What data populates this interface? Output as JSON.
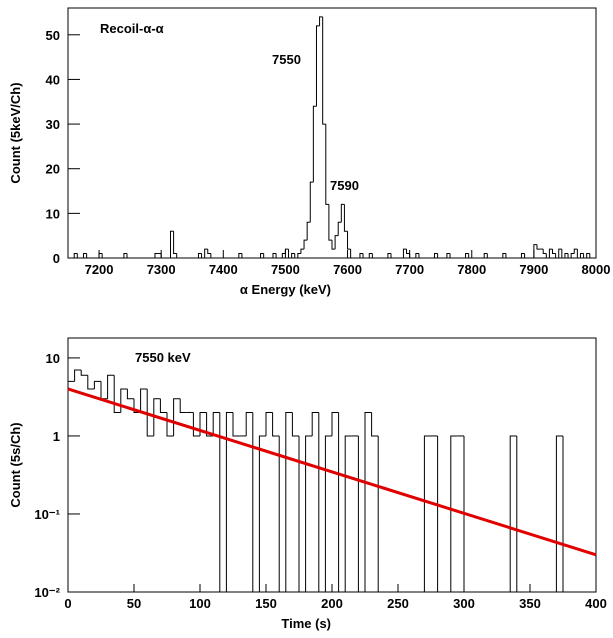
{
  "chart_data": [
    {
      "type": "histogram",
      "title": "Recoil-α-α",
      "xlabel": "α Energy (keV)",
      "ylabel": "Count (5keV/Ch)",
      "annotations": [
        "7550",
        "7590"
      ],
      "color": "#000000",
      "log_y": false,
      "bins": [
        7150,
        7155,
        7160,
        7165,
        7170,
        7175,
        7180,
        7185,
        7190,
        7195,
        7200,
        7205,
        7210,
        7215,
        7220,
        7225,
        7230,
        7235,
        7240,
        7245,
        7250,
        7255,
        7260,
        7265,
        7270,
        7275,
        7280,
        7285,
        7290,
        7295,
        7300,
        7305,
        7310,
        7315,
        7320,
        7325,
        7330,
        7335,
        7340,
        7345,
        7350,
        7355,
        7360,
        7365,
        7370,
        7375,
        7380,
        7385,
        7390,
        7395,
        7400,
        7405,
        7410,
        7415,
        7420,
        7425,
        7430,
        7435,
        7440,
        7445,
        7450,
        7455,
        7460,
        7465,
        7470,
        7475,
        7480,
        7485,
        7490,
        7495,
        7500,
        7505,
        7510,
        7515,
        7520,
        7525,
        7530,
        7535,
        7540,
        7545,
        7550,
        7555,
        7560,
        7565,
        7570,
        7575,
        7580,
        7585,
        7590,
        7595,
        7600,
        7605,
        7610,
        7615,
        7620,
        7625,
        7630,
        7635,
        7640,
        7645,
        7650,
        7655,
        7660,
        7665,
        7670,
        7675,
        7680,
        7685,
        7690,
        7695,
        7700,
        7705,
        7710,
        7715,
        7720,
        7725,
        7730,
        7735,
        7740,
        7745,
        7750,
        7755,
        7760,
        7765,
        7770,
        7775,
        7780,
        7785,
        7790,
        7795,
        7800,
        7805,
        7810,
        7815,
        7820,
        7825,
        7830,
        7835,
        7840,
        7845,
        7850,
        7855,
        7860,
        7865,
        7870,
        7875,
        7880,
        7885,
        7890,
        7895,
        7900,
        7905,
        7910,
        7915,
        7920,
        7925,
        7930,
        7935,
        7940,
        7945,
        7950,
        7955,
        7960,
        7965,
        7970,
        7975,
        7980,
        7985,
        7990,
        7995,
        8000
      ],
      "values": [
        0,
        0,
        1,
        0,
        0,
        1,
        0,
        0,
        0,
        0,
        1,
        0,
        0,
        0,
        0,
        0,
        0,
        0,
        1,
        0,
        0,
        0,
        0,
        0,
        0,
        0,
        0,
        0,
        1,
        1,
        0,
        0,
        0,
        6,
        1,
        0,
        0,
        0,
        0,
        0,
        0,
        0,
        1,
        0,
        2,
        1,
        0,
        0,
        0,
        0,
        0,
        0,
        0,
        0,
        0,
        1,
        0,
        0,
        0,
        0,
        0,
        0,
        1,
        0,
        0,
        0,
        1,
        0,
        0,
        1,
        2,
        0,
        1,
        0,
        1,
        2,
        4,
        8,
        17,
        34,
        52,
        54,
        30,
        12,
        4,
        2,
        5,
        8,
        12,
        6,
        2,
        0,
        0,
        0,
        1,
        0,
        0,
        1,
        0,
        0,
        0,
        0,
        0,
        1,
        0,
        0,
        0,
        0,
        2,
        1,
        0,
        0,
        1,
        0,
        0,
        0,
        0,
        0,
        1,
        0,
        0,
        0,
        1,
        0,
        0,
        0,
        0,
        0,
        1,
        0,
        0,
        0,
        0,
        0,
        1,
        0,
        0,
        0,
        0,
        0,
        1,
        0,
        0,
        0,
        0,
        0,
        1,
        0,
        0,
        0,
        3,
        2,
        2,
        1,
        0,
        2,
        1,
        0,
        2,
        0,
        1,
        0,
        1,
        2,
        0,
        1,
        0,
        1,
        0,
        0
      ],
      "xlim": [
        7150,
        8000
      ],
      "xticks": [
        7200,
        7300,
        7400,
        7500,
        7600,
        7700,
        7800,
        7900,
        8000
      ],
      "ylim": [
        0,
        56
      ],
      "yticks": [
        0,
        10,
        20,
        30,
        40,
        50
      ]
    },
    {
      "type": "histogram",
      "title": "7550 keV",
      "xlabel": "Time (s)",
      "ylabel": "Count (5s/Ch)",
      "color": "#000000",
      "log_y": true,
      "bins": [
        0,
        5,
        10,
        15,
        20,
        25,
        30,
        35,
        40,
        45,
        50,
        55,
        60,
        65,
        70,
        75,
        80,
        85,
        90,
        95,
        100,
        105,
        110,
        115,
        120,
        125,
        130,
        135,
        140,
        145,
        150,
        155,
        160,
        165,
        170,
        175,
        180,
        185,
        190,
        195,
        200,
        205,
        210,
        215,
        220,
        225,
        230,
        235,
        240,
        245,
        250,
        255,
        260,
        265,
        270,
        275,
        280,
        285,
        290,
        295,
        300,
        305,
        310,
        315,
        320,
        325,
        330,
        335,
        340,
        345,
        350,
        355,
        360,
        365,
        370,
        375,
        380,
        385,
        390,
        395,
        400
      ],
      "values": [
        5,
        7,
        6,
        4,
        5,
        3,
        6,
        2,
        4,
        3,
        2,
        4,
        1,
        3,
        2,
        1,
        3,
        2,
        2,
        1,
        2,
        1,
        2,
        0,
        2,
        1,
        1,
        2,
        0,
        1,
        2,
        1,
        0,
        2,
        1,
        0,
        1,
        2,
        0,
        1,
        2,
        0,
        1,
        1,
        0,
        2,
        1,
        0,
        0,
        0,
        0,
        0,
        0,
        0,
        1,
        1,
        0,
        0,
        1,
        1,
        0,
        0,
        0,
        0,
        0,
        0,
        0,
        1,
        0,
        0,
        0,
        0,
        0,
        0,
        1,
        0,
        0,
        0,
        0,
        0
      ],
      "fit": {
        "x": [
          0,
          400
        ],
        "values": [
          4,
          0.03
        ],
        "color": "#e00000"
      },
      "xlim": [
        0,
        400
      ],
      "xticks": [
        0,
        50,
        100,
        150,
        200,
        250,
        300,
        350,
        400
      ],
      "ylim": [
        0.01,
        18
      ],
      "yticks": [
        {
          "value": 0.01,
          "label": "10⁻²"
        },
        {
          "value": 0.1,
          "label": "10⁻¹"
        },
        1,
        10
      ]
    }
  ]
}
